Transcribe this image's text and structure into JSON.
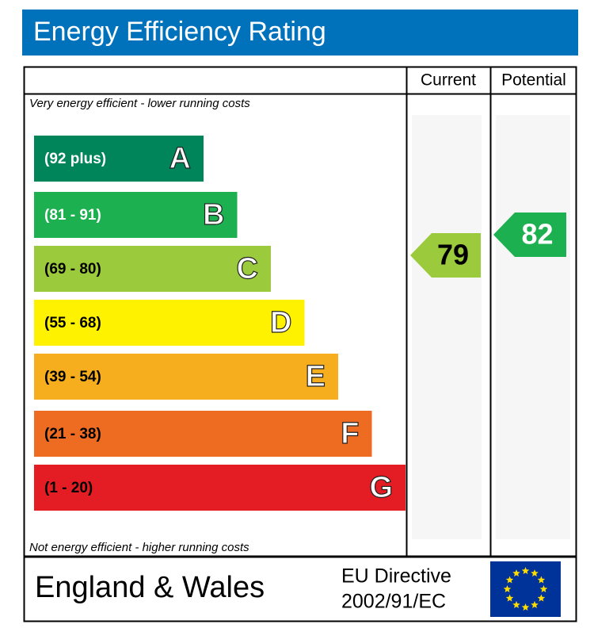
{
  "chart_data": {
    "type": "epc",
    "title": "Energy Efficiency Rating",
    "columns": [
      "Current",
      "Potential"
    ],
    "top_note": "Very energy efficient - lower running costs",
    "bottom_note": "Not energy efficient - higher running costs",
    "bands": [
      {
        "range": "(92 plus)",
        "letter": "A",
        "color": "#00855a",
        "text_color": "#ffffff"
      },
      {
        "range": "(81 - 91)",
        "letter": "B",
        "color": "#1db050",
        "text_color": "#ffffff"
      },
      {
        "range": "(69 - 80)",
        "letter": "C",
        "color": "#9bcb3c",
        "text_color": "#000000"
      },
      {
        "range": "(55 - 68)",
        "letter": "D",
        "color": "#fff200",
        "text_color": "#000000"
      },
      {
        "range": "(39 - 54)",
        "letter": "E",
        "color": "#f6ae1e",
        "text_color": "#000000"
      },
      {
        "range": "(21 - 38)",
        "letter": "F",
        "color": "#ee6b22",
        "text_color": "#000000"
      },
      {
        "range": "(1 - 20)",
        "letter": "G",
        "color": "#e31d23",
        "text_color": "#000000"
      }
    ],
    "current": {
      "value": 79,
      "color": "#9bcb3c",
      "text_color": "#000000"
    },
    "potential": {
      "value": 82,
      "color": "#1db050",
      "text_color": "#ffffff"
    },
    "region": "England & Wales",
    "directive": [
      "EU Directive",
      "2002/91/EC"
    ]
  }
}
